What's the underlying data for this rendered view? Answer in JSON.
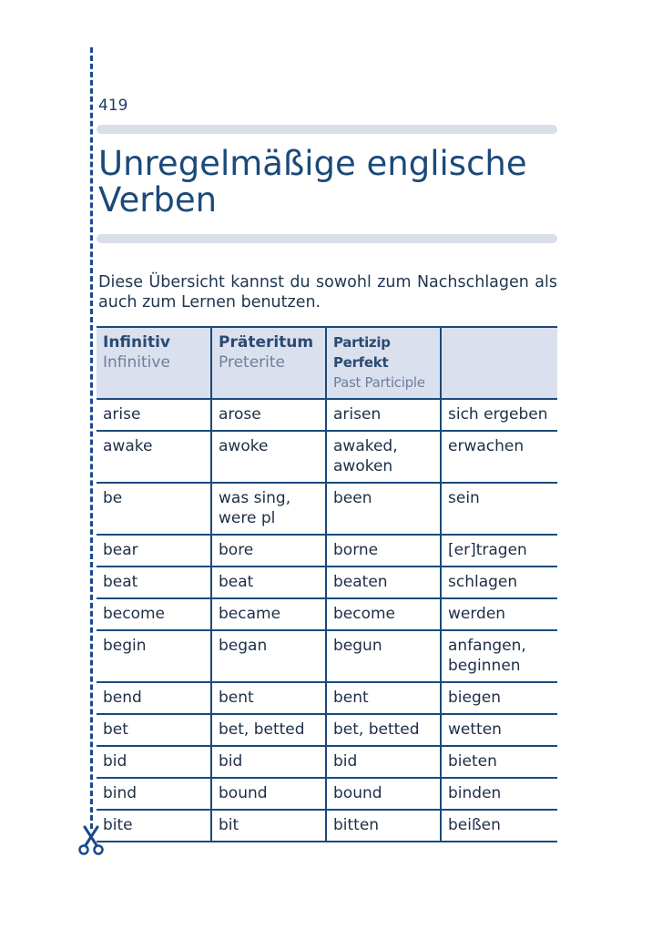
{
  "page_number": "419",
  "title": "Unregelmäßige englische Verben",
  "intro": "Diese Übersicht kannst du sowohl zum Nachschlagen als auch zum Lernen benutzen.",
  "table": {
    "headers": [
      {
        "de": "Infinitiv",
        "en": "Infinitive"
      },
      {
        "de": "Präteritum",
        "en": "Preterite"
      },
      {
        "de": "Partizip Perfekt",
        "en": "Past Participle"
      },
      {
        "de": "",
        "en": ""
      }
    ],
    "rows": [
      [
        "arise",
        "arose",
        "arisen",
        "sich ergeben"
      ],
      [
        "awake",
        "awoke",
        "awaked, awoken",
        "erwachen"
      ],
      [
        "be",
        "was sing, were pl",
        "been",
        "sein"
      ],
      [
        "bear",
        "bore",
        "borne",
        "[er]tragen"
      ],
      [
        "beat",
        "beat",
        "beaten",
        "schlagen"
      ],
      [
        "become",
        "became",
        "become",
        "werden"
      ],
      [
        "begin",
        "began",
        "begun",
        "anfangen, beginnen"
      ],
      [
        "bend",
        "bent",
        "bent",
        "biegen"
      ],
      [
        "bet",
        "bet, betted",
        "bet, betted",
        "wetten"
      ],
      [
        "bid",
        "bid",
        "bid",
        "bieten"
      ],
      [
        "bind",
        "bound",
        "bound",
        "binden"
      ],
      [
        "bite",
        "bit",
        "bitten",
        "beißen"
      ]
    ]
  },
  "icons": {
    "cutline": "dashed-cut-line",
    "scissors": "scissors-icon"
  },
  "colors": {
    "accent": "#1a4a7a",
    "header_bg": "#dbe0ee",
    "bar": "#d9deea"
  }
}
